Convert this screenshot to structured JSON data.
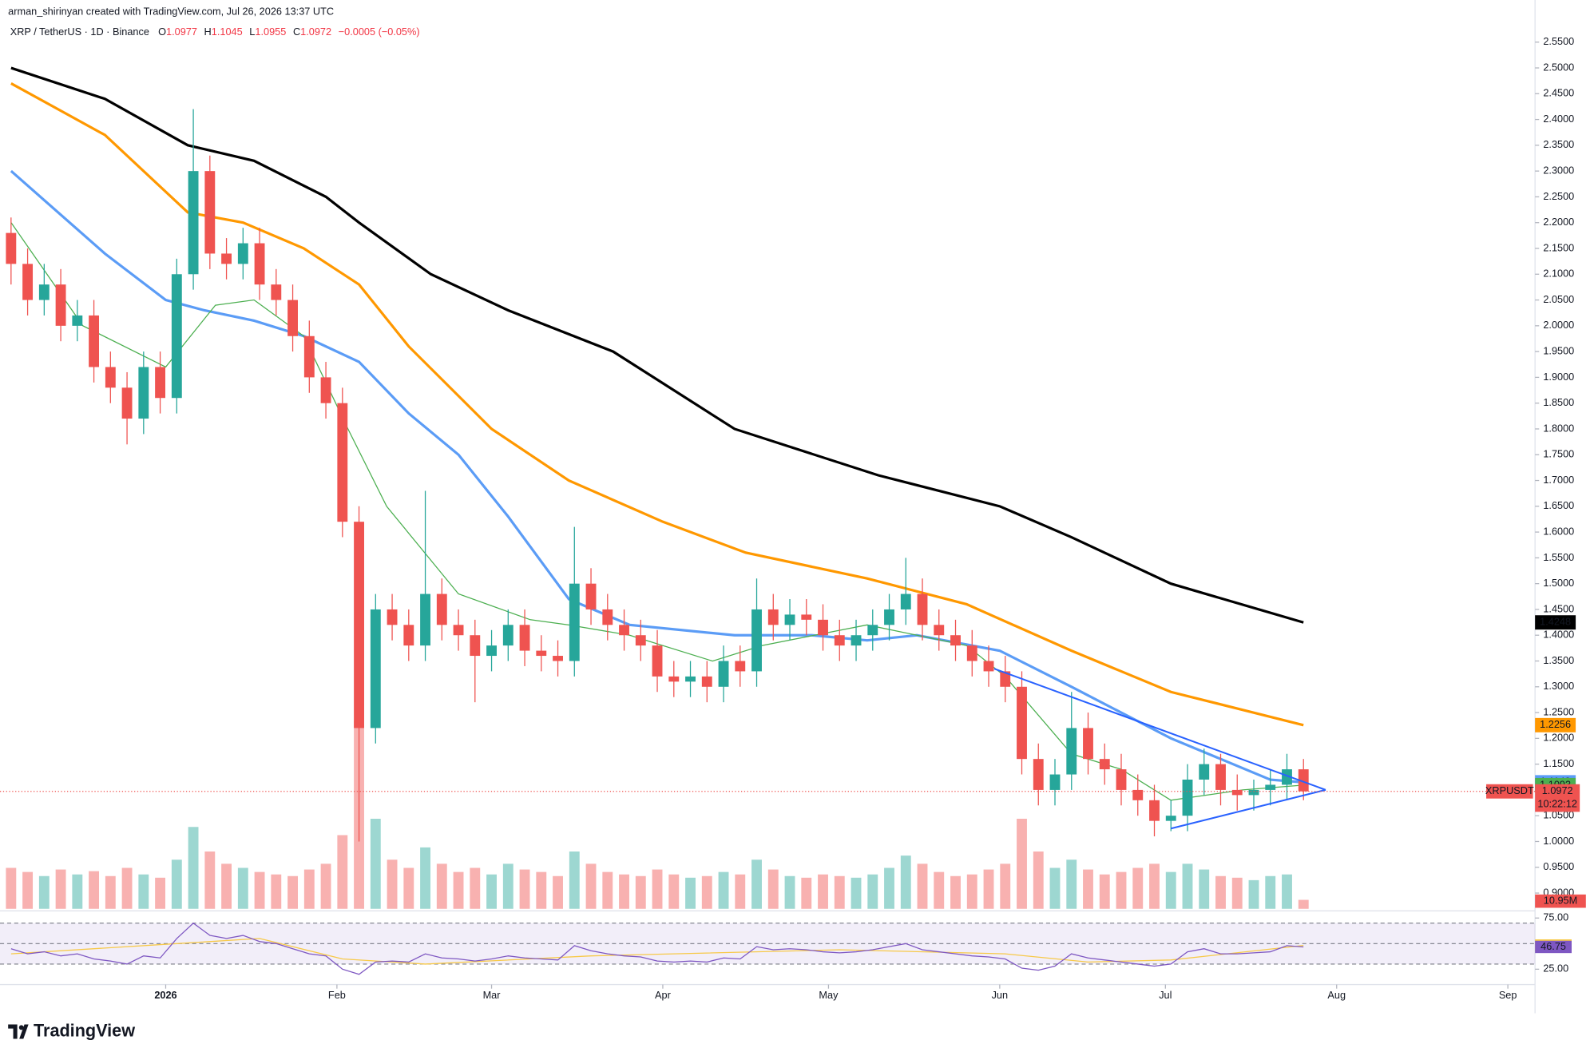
{
  "chart_data": {
    "type": "candlestick",
    "attribution": "arman_shirinyan created with TradingView.com, Jul 26, 2026 13:37 UTC",
    "title": "XRP / TetherUS · 1D · Binance",
    "header_ohlc": {
      "open_label": "O",
      "open": 1.0977,
      "high_label": "H",
      "high": 1.1045,
      "low_label": "L",
      "low": 1.0955,
      "close_label": "C",
      "close": 1.0972,
      "change": "−0.0005 (−0.05%)"
    },
    "brand": "TradingView",
    "up_color": "#26a69a",
    "down_color": "#ef5350",
    "x": [
      0,
      3,
      6,
      9,
      12,
      15,
      18,
      21,
      24,
      27,
      30,
      33,
      36,
      39,
      42,
      45,
      48,
      51,
      54,
      57,
      60,
      63,
      66,
      69,
      72,
      75,
      78,
      81,
      84,
      87,
      90,
      93,
      96,
      99,
      102,
      105,
      108,
      111,
      114,
      117,
      120,
      123,
      126,
      129,
      132,
      135,
      138,
      141,
      144,
      147,
      150,
      153,
      156,
      159,
      162,
      165,
      168,
      171,
      174,
      177,
      180,
      183,
      186,
      189,
      192,
      195,
      198,
      201,
      204,
      207,
      210,
      213,
      216,
      219,
      222,
      225,
      228,
      231,
      234
    ],
    "open": [
      2.18,
      2.12,
      2.05,
      2.08,
      2.0,
      2.02,
      1.92,
      1.88,
      1.82,
      1.92,
      1.86,
      2.1,
      2.3,
      2.14,
      2.12,
      2.16,
      2.08,
      2.05,
      1.98,
      1.9,
      1.85,
      1.62,
      1.22,
      1.45,
      1.42,
      1.38,
      1.48,
      1.42,
      1.4,
      1.36,
      1.38,
      1.42,
      1.37,
      1.36,
      1.35,
      1.5,
      1.45,
      1.42,
      1.4,
      1.38,
      1.32,
      1.31,
      1.32,
      1.3,
      1.35,
      1.33,
      1.45,
      1.42,
      1.44,
      1.43,
      1.4,
      1.38,
      1.4,
      1.42,
      1.45,
      1.48,
      1.42,
      1.4,
      1.38,
      1.35,
      1.33,
      1.3,
      1.16,
      1.1,
      1.13,
      1.22,
      1.16,
      1.14,
      1.1,
      1.08,
      1.04,
      1.05,
      1.12,
      1.15,
      1.1,
      1.09,
      1.1,
      1.11,
      1.14
    ],
    "high": [
      2.21,
      2.15,
      2.12,
      2.11,
      2.05,
      2.05,
      1.95,
      1.91,
      1.95,
      1.95,
      2.13,
      2.42,
      2.33,
      2.17,
      2.19,
      2.19,
      2.11,
      2.08,
      2.01,
      1.93,
      1.88,
      1.65,
      1.48,
      1.48,
      1.45,
      1.68,
      1.51,
      1.45,
      1.43,
      1.41,
      1.45,
      1.45,
      1.4,
      1.39,
      1.61,
      1.53,
      1.48,
      1.45,
      1.43,
      1.41,
      1.35,
      1.35,
      1.35,
      1.38,
      1.38,
      1.51,
      1.48,
      1.47,
      1.47,
      1.46,
      1.43,
      1.43,
      1.45,
      1.48,
      1.55,
      1.51,
      1.45,
      1.43,
      1.41,
      1.38,
      1.36,
      1.33,
      1.19,
      1.16,
      1.29,
      1.25,
      1.19,
      1.17,
      1.13,
      1.11,
      1.08,
      1.15,
      1.18,
      1.17,
      1.13,
      1.12,
      1.14,
      1.17,
      1.16
    ],
    "low": [
      2.08,
      2.02,
      2.02,
      1.97,
      1.97,
      1.89,
      1.85,
      1.77,
      1.79,
      1.83,
      1.83,
      2.07,
      2.11,
      2.09,
      2.09,
      2.05,
      2.02,
      1.95,
      1.87,
      1.82,
      1.59,
      1.0,
      1.19,
      1.39,
      1.35,
      1.35,
      1.39,
      1.37,
      1.27,
      1.33,
      1.35,
      1.34,
      1.33,
      1.32,
      1.32,
      1.42,
      1.39,
      1.37,
      1.35,
      1.29,
      1.28,
      1.28,
      1.27,
      1.27,
      1.3,
      1.3,
      1.39,
      1.39,
      1.4,
      1.37,
      1.35,
      1.35,
      1.37,
      1.39,
      1.42,
      1.39,
      1.37,
      1.35,
      1.32,
      1.3,
      1.27,
      1.13,
      1.07,
      1.07,
      1.1,
      1.13,
      1.11,
      1.07,
      1.05,
      1.01,
      1.02,
      1.02,
      1.09,
      1.07,
      1.06,
      1.06,
      1.07,
      1.08,
      1.08
    ],
    "close": [
      2.12,
      2.05,
      2.08,
      2.0,
      2.02,
      1.92,
      1.88,
      1.82,
      1.92,
      1.86,
      2.1,
      2.3,
      2.14,
      2.12,
      2.16,
      2.08,
      2.05,
      1.98,
      1.9,
      1.85,
      1.62,
      1.22,
      1.45,
      1.42,
      1.38,
      1.48,
      1.42,
      1.4,
      1.36,
      1.38,
      1.42,
      1.37,
      1.36,
      1.35,
      1.5,
      1.45,
      1.42,
      1.4,
      1.38,
      1.32,
      1.31,
      1.32,
      1.3,
      1.35,
      1.33,
      1.45,
      1.42,
      1.44,
      1.43,
      1.4,
      1.38,
      1.4,
      1.42,
      1.45,
      1.48,
      1.42,
      1.4,
      1.38,
      1.35,
      1.33,
      1.3,
      1.16,
      1.1,
      1.13,
      1.22,
      1.16,
      1.14,
      1.1,
      1.08,
      1.04,
      1.05,
      1.12,
      1.15,
      1.1,
      1.09,
      1.1,
      1.11,
      1.14,
      1.0972
    ],
    "volume": [
      50,
      45,
      40,
      48,
      42,
      46,
      40,
      50,
      42,
      38,
      60,
      100,
      70,
      55,
      50,
      45,
      42,
      40,
      48,
      55,
      90,
      230,
      110,
      60,
      50,
      75,
      55,
      45,
      50,
      42,
      55,
      48,
      45,
      40,
      70,
      55,
      45,
      42,
      40,
      48,
      42,
      38,
      40,
      45,
      42,
      60,
      48,
      40,
      38,
      42,
      40,
      38,
      42,
      50,
      65,
      55,
      45,
      40,
      42,
      48,
      55,
      110,
      70,
      50,
      60,
      48,
      42,
      45,
      50,
      55,
      45,
      55,
      48,
      40,
      38,
      35,
      40,
      42,
      10.95
    ],
    "volume_value_label": "10.95M",
    "vlim": [
      0,
      260
    ],
    "xlim": [
      -2,
      275
    ],
    "xticks": [
      {
        "value": 28,
        "label": "2026"
      },
      {
        "value": 59,
        "label": "Feb"
      },
      {
        "value": 87,
        "label": "Mar"
      },
      {
        "value": 118,
        "label": "Apr"
      },
      {
        "value": 148,
        "label": "May"
      },
      {
        "value": 179,
        "label": "Jun"
      },
      {
        "value": 209,
        "label": "Jul"
      },
      {
        "value": 240,
        "label": "Aug"
      },
      {
        "value": 271,
        "label": "Sep"
      }
    ],
    "ylim": [
      0.8655,
      2.592
    ],
    "yticks": [
      {
        "value": 0.9,
        "label": "0.9000"
      },
      {
        "value": 0.95,
        "label": "0.9500"
      },
      {
        "value": 1.0,
        "label": "1.0000"
      },
      {
        "value": 1.05,
        "label": "1.0500"
      },
      {
        "value": 1.1,
        "label": "1.1000"
      },
      {
        "value": 1.15,
        "label": "1.1500"
      },
      {
        "value": 1.2,
        "label": "1.2000"
      },
      {
        "value": 1.25,
        "label": "1.2500"
      },
      {
        "value": 1.3,
        "label": "1.3000"
      },
      {
        "value": 1.35,
        "label": "1.3500"
      },
      {
        "value": 1.4,
        "label": "1.4000"
      },
      {
        "value": 1.45,
        "label": "1.4500"
      },
      {
        "value": 1.5,
        "label": "1.5000"
      },
      {
        "value": 1.55,
        "label": "1.5500"
      },
      {
        "value": 1.6,
        "label": "1.6000"
      },
      {
        "value": 1.65,
        "label": "1.6500"
      },
      {
        "value": 1.7,
        "label": "1.7000"
      },
      {
        "value": 1.75,
        "label": "1.7500"
      },
      {
        "value": 1.8,
        "label": "1.8000"
      },
      {
        "value": 1.85,
        "label": "1.8500"
      },
      {
        "value": 1.9,
        "label": "1.9000"
      },
      {
        "value": 1.95,
        "label": "1.9500"
      },
      {
        "value": 2.0,
        "label": "2.0000"
      },
      {
        "value": 2.05,
        "label": "2.0500"
      },
      {
        "value": 2.1,
        "label": "2.1000"
      },
      {
        "value": 2.15,
        "label": "2.1500"
      },
      {
        "value": 2.2,
        "label": "2.2000"
      },
      {
        "value": 2.25,
        "label": "2.2500"
      },
      {
        "value": 2.3,
        "label": "2.3000"
      },
      {
        "value": 2.35,
        "label": "2.3500"
      },
      {
        "value": 2.4,
        "label": "2.4000"
      },
      {
        "value": 2.45,
        "label": "2.4500"
      },
      {
        "value": 2.5,
        "label": "2.5000"
      },
      {
        "value": 2.55,
        "label": "2.5500"
      }
    ],
    "moving_averages": [
      {
        "color": "#000000",
        "width": 2.5,
        "x": [
          0,
          17,
          32,
          44,
          57,
          63,
          76,
          90,
          109,
          131,
          157,
          179,
          192,
          210,
          234
        ],
        "values": [
          2.5,
          2.44,
          2.35,
          2.32,
          2.25,
          2.2,
          2.1,
          2.03,
          1.95,
          1.8,
          1.71,
          1.65,
          1.59,
          1.5,
          1.4248
        ]
      },
      {
        "color": "#ff9800",
        "width": 2.5,
        "x": [
          0,
          17,
          32,
          42,
          53,
          63,
          72,
          87,
          101,
          118,
          133,
          155,
          173,
          192,
          210,
          234
        ],
        "values": [
          2.47,
          2.37,
          2.22,
          2.2,
          2.15,
          2.08,
          1.96,
          1.8,
          1.7,
          1.62,
          1.56,
          1.51,
          1.46,
          1.37,
          1.29,
          1.2256
        ]
      },
      {
        "color": "#5b9cf6",
        "width": 2.5,
        "x": [
          0,
          17,
          28,
          35,
          44,
          53,
          63,
          72,
          81,
          90,
          101,
          112,
          131,
          145,
          155,
          164,
          179,
          192,
          210,
          228,
          234
        ],
        "values": [
          2.3,
          2.14,
          2.05,
          2.03,
          2.01,
          1.98,
          1.93,
          1.83,
          1.75,
          1.63,
          1.47,
          1.42,
          1.4,
          1.4,
          1.39,
          1.4,
          1.37,
          1.3,
          1.2,
          1.12,
          1.1148
        ]
      },
      {
        "color": "#4caf50",
        "width": 1,
        "x": [
          0,
          13,
          28,
          37,
          44,
          53,
          61,
          68,
          81,
          94,
          101,
          112,
          127,
          136,
          155,
          173,
          180,
          192,
          201,
          210,
          223,
          234
        ],
        "values": [
          2.2,
          2.0,
          1.92,
          2.04,
          2.05,
          1.98,
          1.8,
          1.65,
          1.48,
          1.43,
          1.42,
          1.4,
          1.35,
          1.38,
          1.42,
          1.38,
          1.32,
          1.17,
          1.14,
          1.08,
          1.1,
          1.1093
        ]
      }
    ],
    "trendlines": [
      {
        "color": "#2962ff",
        "x": [
          178,
          238
        ],
        "values": [
          1.335,
          1.1
        ]
      },
      {
        "color": "#2962ff",
        "x": [
          210,
          238
        ],
        "values": [
          1.025,
          1.1
        ]
      }
    ],
    "price_tag": {
      "symbol": "XRPUSDT",
      "timer": "10:22:12"
    },
    "rsi": {
      "color": "#7e57c2",
      "values": [
        45,
        40,
        42,
        38,
        40,
        35,
        33,
        30,
        38,
        36,
        55,
        70,
        58,
        55,
        58,
        52,
        50,
        45,
        40,
        38,
        25,
        20,
        32,
        33,
        32,
        40,
        36,
        35,
        33,
        35,
        38,
        36,
        35,
        34,
        48,
        43,
        40,
        38,
        37,
        33,
        32,
        33,
        32,
        36,
        35,
        47,
        44,
        45,
        44,
        42,
        41,
        42,
        44,
        47,
        50,
        44,
        42,
        40,
        38,
        37,
        35,
        26,
        24,
        28,
        40,
        36,
        34,
        32,
        30,
        28,
        30,
        42,
        45,
        40,
        40,
        41,
        42,
        48,
        46.75
      ]
    },
    "rsi_ma": {
      "color": "#f7c948",
      "x": [
        0,
        30,
        45,
        60,
        75,
        105,
        150,
        180,
        195,
        210,
        234
      ],
      "values": [
        40,
        50,
        55,
        35,
        30,
        38,
        44,
        40,
        32,
        34,
        48.17
      ]
    },
    "rsi_ylim": [
      14,
      77
    ],
    "rsi_yticks": [
      {
        "value": 75,
        "label": "75.00"
      },
      {
        "value": 25,
        "label": "25.00"
      }
    ],
    "rsi_bands": [
      30,
      50,
      70
    ]
  }
}
